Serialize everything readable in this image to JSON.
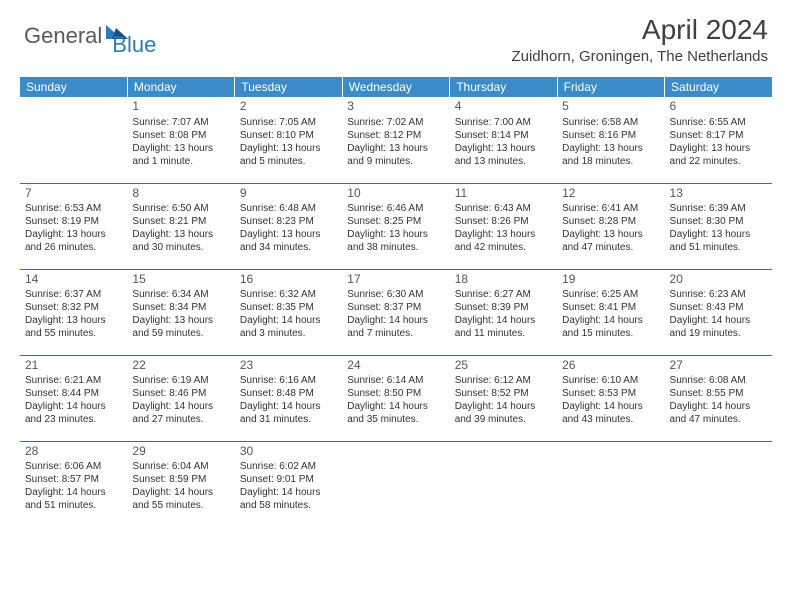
{
  "logo": {
    "text1": "General",
    "text2": "Blue"
  },
  "title": "April 2024",
  "location": "Zuidhorn, Groningen, The Netherlands",
  "colors": {
    "header_bg": "#3b8bc8",
    "header_text": "#ffffff",
    "border": "#2f6fa6",
    "logo_gray": "#5a5a5a",
    "logo_blue": "#2b7bbf",
    "body_text": "#333333"
  },
  "weekdays": [
    "Sunday",
    "Monday",
    "Tuesday",
    "Wednesday",
    "Thursday",
    "Friday",
    "Saturday"
  ],
  "weeks": [
    [
      null,
      {
        "n": "1",
        "sr": "Sunrise: 7:07 AM",
        "ss": "Sunset: 8:08 PM",
        "d1": "Daylight: 13 hours",
        "d2": "and 1 minute."
      },
      {
        "n": "2",
        "sr": "Sunrise: 7:05 AM",
        "ss": "Sunset: 8:10 PM",
        "d1": "Daylight: 13 hours",
        "d2": "and 5 minutes."
      },
      {
        "n": "3",
        "sr": "Sunrise: 7:02 AM",
        "ss": "Sunset: 8:12 PM",
        "d1": "Daylight: 13 hours",
        "d2": "and 9 minutes."
      },
      {
        "n": "4",
        "sr": "Sunrise: 7:00 AM",
        "ss": "Sunset: 8:14 PM",
        "d1": "Daylight: 13 hours",
        "d2": "and 13 minutes."
      },
      {
        "n": "5",
        "sr": "Sunrise: 6:58 AM",
        "ss": "Sunset: 8:16 PM",
        "d1": "Daylight: 13 hours",
        "d2": "and 18 minutes."
      },
      {
        "n": "6",
        "sr": "Sunrise: 6:55 AM",
        "ss": "Sunset: 8:17 PM",
        "d1": "Daylight: 13 hours",
        "d2": "and 22 minutes."
      }
    ],
    [
      {
        "n": "7",
        "sr": "Sunrise: 6:53 AM",
        "ss": "Sunset: 8:19 PM",
        "d1": "Daylight: 13 hours",
        "d2": "and 26 minutes."
      },
      {
        "n": "8",
        "sr": "Sunrise: 6:50 AM",
        "ss": "Sunset: 8:21 PM",
        "d1": "Daylight: 13 hours",
        "d2": "and 30 minutes."
      },
      {
        "n": "9",
        "sr": "Sunrise: 6:48 AM",
        "ss": "Sunset: 8:23 PM",
        "d1": "Daylight: 13 hours",
        "d2": "and 34 minutes."
      },
      {
        "n": "10",
        "sr": "Sunrise: 6:46 AM",
        "ss": "Sunset: 8:25 PM",
        "d1": "Daylight: 13 hours",
        "d2": "and 38 minutes."
      },
      {
        "n": "11",
        "sr": "Sunrise: 6:43 AM",
        "ss": "Sunset: 8:26 PM",
        "d1": "Daylight: 13 hours",
        "d2": "and 42 minutes."
      },
      {
        "n": "12",
        "sr": "Sunrise: 6:41 AM",
        "ss": "Sunset: 8:28 PM",
        "d1": "Daylight: 13 hours",
        "d2": "and 47 minutes."
      },
      {
        "n": "13",
        "sr": "Sunrise: 6:39 AM",
        "ss": "Sunset: 8:30 PM",
        "d1": "Daylight: 13 hours",
        "d2": "and 51 minutes."
      }
    ],
    [
      {
        "n": "14",
        "sr": "Sunrise: 6:37 AM",
        "ss": "Sunset: 8:32 PM",
        "d1": "Daylight: 13 hours",
        "d2": "and 55 minutes."
      },
      {
        "n": "15",
        "sr": "Sunrise: 6:34 AM",
        "ss": "Sunset: 8:34 PM",
        "d1": "Daylight: 13 hours",
        "d2": "and 59 minutes."
      },
      {
        "n": "16",
        "sr": "Sunrise: 6:32 AM",
        "ss": "Sunset: 8:35 PM",
        "d1": "Daylight: 14 hours",
        "d2": "and 3 minutes."
      },
      {
        "n": "17",
        "sr": "Sunrise: 6:30 AM",
        "ss": "Sunset: 8:37 PM",
        "d1": "Daylight: 14 hours",
        "d2": "and 7 minutes."
      },
      {
        "n": "18",
        "sr": "Sunrise: 6:27 AM",
        "ss": "Sunset: 8:39 PM",
        "d1": "Daylight: 14 hours",
        "d2": "and 11 minutes."
      },
      {
        "n": "19",
        "sr": "Sunrise: 6:25 AM",
        "ss": "Sunset: 8:41 PM",
        "d1": "Daylight: 14 hours",
        "d2": "and 15 minutes."
      },
      {
        "n": "20",
        "sr": "Sunrise: 6:23 AM",
        "ss": "Sunset: 8:43 PM",
        "d1": "Daylight: 14 hours",
        "d2": "and 19 minutes."
      }
    ],
    [
      {
        "n": "21",
        "sr": "Sunrise: 6:21 AM",
        "ss": "Sunset: 8:44 PM",
        "d1": "Daylight: 14 hours",
        "d2": "and 23 minutes."
      },
      {
        "n": "22",
        "sr": "Sunrise: 6:19 AM",
        "ss": "Sunset: 8:46 PM",
        "d1": "Daylight: 14 hours",
        "d2": "and 27 minutes."
      },
      {
        "n": "23",
        "sr": "Sunrise: 6:16 AM",
        "ss": "Sunset: 8:48 PM",
        "d1": "Daylight: 14 hours",
        "d2": "and 31 minutes."
      },
      {
        "n": "24",
        "sr": "Sunrise: 6:14 AM",
        "ss": "Sunset: 8:50 PM",
        "d1": "Daylight: 14 hours",
        "d2": "and 35 minutes."
      },
      {
        "n": "25",
        "sr": "Sunrise: 6:12 AM",
        "ss": "Sunset: 8:52 PM",
        "d1": "Daylight: 14 hours",
        "d2": "and 39 minutes."
      },
      {
        "n": "26",
        "sr": "Sunrise: 6:10 AM",
        "ss": "Sunset: 8:53 PM",
        "d1": "Daylight: 14 hours",
        "d2": "and 43 minutes."
      },
      {
        "n": "27",
        "sr": "Sunrise: 6:08 AM",
        "ss": "Sunset: 8:55 PM",
        "d1": "Daylight: 14 hours",
        "d2": "and 47 minutes."
      }
    ],
    [
      {
        "n": "28",
        "sr": "Sunrise: 6:06 AM",
        "ss": "Sunset: 8:57 PM",
        "d1": "Daylight: 14 hours",
        "d2": "and 51 minutes."
      },
      {
        "n": "29",
        "sr": "Sunrise: 6:04 AM",
        "ss": "Sunset: 8:59 PM",
        "d1": "Daylight: 14 hours",
        "d2": "and 55 minutes."
      },
      {
        "n": "30",
        "sr": "Sunrise: 6:02 AM",
        "ss": "Sunset: 9:01 PM",
        "d1": "Daylight: 14 hours",
        "d2": "and 58 minutes."
      },
      null,
      null,
      null,
      null
    ]
  ]
}
